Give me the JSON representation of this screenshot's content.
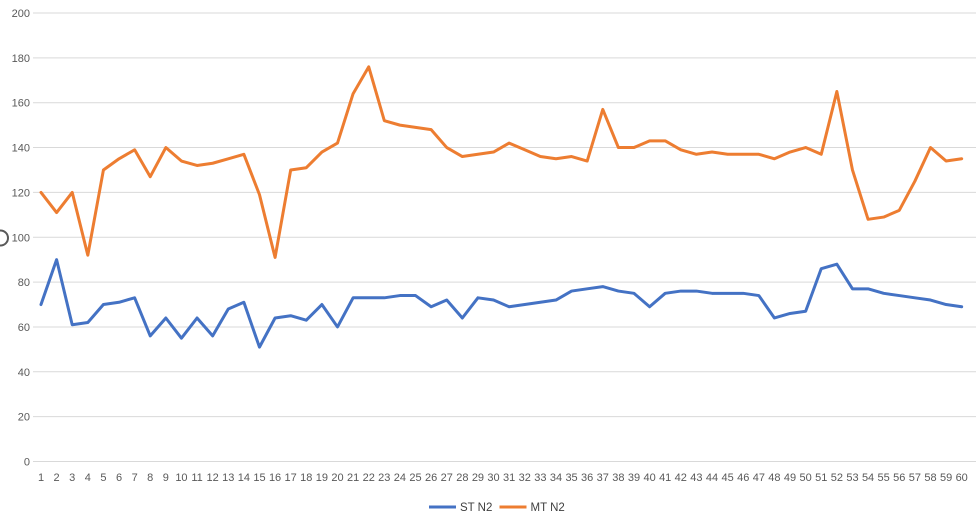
{
  "chart_data": {
    "type": "line",
    "title": "",
    "xlabel": "",
    "ylabel": "",
    "ylim": [
      0,
      200
    ],
    "yticks": [
      0,
      20,
      40,
      60,
      80,
      100,
      120,
      140,
      160,
      180,
      200
    ],
    "x": [
      1,
      2,
      3,
      4,
      5,
      6,
      7,
      8,
      9,
      10,
      11,
      12,
      13,
      14,
      15,
      16,
      17,
      18,
      19,
      20,
      21,
      22,
      23,
      24,
      25,
      26,
      27,
      28,
      29,
      30,
      31,
      32,
      33,
      34,
      35,
      36,
      37,
      38,
      39,
      40,
      41,
      42,
      43,
      44,
      45,
      46,
      47,
      48,
      49,
      50,
      51,
      52,
      53,
      54,
      55,
      56,
      57,
      58,
      59,
      60
    ],
    "grid": true,
    "legend_position": "bottom",
    "gridline_color": "#D9D9D9",
    "axis_label_color": "#595959",
    "y_axis_partial_glyph": "O",
    "series": [
      {
        "name": "ST N2",
        "color": "#4472C4",
        "values": [
          70,
          90,
          61,
          62,
          70,
          71,
          73,
          56,
          64,
          55,
          64,
          56,
          68,
          71,
          51,
          64,
          65,
          63,
          70,
          60,
          73,
          73,
          73,
          74,
          74,
          69,
          72,
          64,
          73,
          72,
          69,
          70,
          71,
          72,
          76,
          77,
          78,
          76,
          75,
          69,
          75,
          76,
          76,
          75,
          75,
          75,
          74,
          64,
          66,
          67,
          86,
          88,
          77,
          77,
          75,
          74,
          73,
          72,
          70,
          69
        ]
      },
      {
        "name": "MT N2",
        "color": "#ED7D31",
        "values": [
          120,
          111,
          120,
          92,
          130,
          135,
          139,
          127,
          140,
          134,
          132,
          133,
          135,
          137,
          119,
          91,
          130,
          131,
          138,
          142,
          164,
          176,
          152,
          150,
          149,
          148,
          140,
          136,
          137,
          138,
          142,
          139,
          136,
          135,
          136,
          134,
          157,
          140,
          140,
          143,
          143,
          139,
          137,
          138,
          137,
          137,
          137,
          135,
          138,
          140,
          137,
          165,
          130,
          108,
          109,
          112,
          125,
          140,
          134,
          135
        ]
      }
    ]
  },
  "legend": {
    "items": [
      {
        "label": "ST N2",
        "color": "#4472C4"
      },
      {
        "label": "MT N2",
        "color": "#ED7D31"
      }
    ]
  }
}
